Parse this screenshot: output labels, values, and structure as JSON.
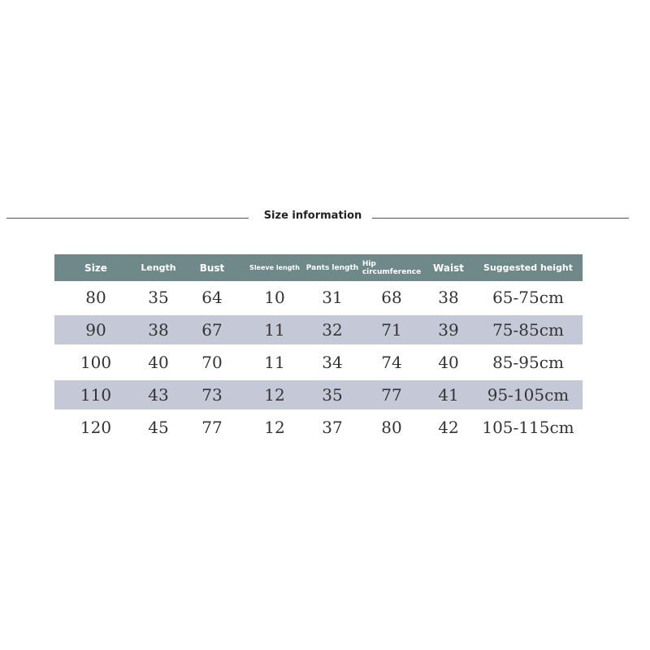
{
  "title": "Size information",
  "colors": {
    "header": "#6f898b",
    "stripe": "#c5c9d7"
  },
  "headers": [
    "Size",
    "Length",
    "Bust",
    "Sleeve length",
    "Pants length",
    "Hip circumference",
    "Waist",
    "Suggested height"
  ],
  "rows": [
    [
      "80",
      "35",
      "64",
      "10",
      "31",
      "68",
      "38",
      "65-75cm"
    ],
    [
      "90",
      "38",
      "67",
      "11",
      "32",
      "71",
      "39",
      "75-85cm"
    ],
    [
      "100",
      "40",
      "70",
      "11",
      "34",
      "74",
      "40",
      "85-95cm"
    ],
    [
      "110",
      "43",
      "73",
      "12",
      "35",
      "77",
      "41",
      "95-105cm"
    ],
    [
      "120",
      "45",
      "77",
      "12",
      "37",
      "80",
      "42",
      "105-115cm"
    ]
  ]
}
